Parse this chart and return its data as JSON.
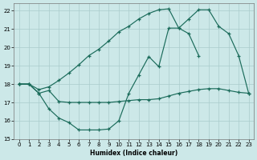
{
  "xlabel": "Humidex (Indice chaleur)",
  "bg_color": "#cce8e8",
  "grid_color": "#aacccc",
  "line_color": "#1a6b5a",
  "xlim": [
    -0.5,
    23.5
  ],
  "ylim": [
    15,
    22.4
  ],
  "xticks": [
    0,
    1,
    2,
    3,
    4,
    5,
    6,
    7,
    8,
    9,
    10,
    11,
    12,
    13,
    14,
    15,
    16,
    17,
    18,
    19,
    20,
    21,
    22,
    23
  ],
  "yticks": [
    15,
    16,
    17,
    18,
    19,
    20,
    21,
    22
  ],
  "line1_x": [
    0,
    1,
    2,
    3,
    4,
    5,
    6,
    7,
    8,
    9,
    10,
    11,
    12,
    13,
    14,
    15,
    16,
    17,
    18,
    19,
    20,
    21,
    22,
    23
  ],
  "line1_y": [
    18.0,
    18.0,
    17.7,
    17.85,
    18.2,
    18.6,
    19.05,
    19.55,
    19.9,
    20.35,
    20.85,
    21.15,
    21.55,
    21.85,
    22.05,
    22.1,
    21.05,
    20.75,
    19.55,
    null,
    null,
    null,
    null,
    null
  ],
  "line2_x": [
    0,
    1,
    2,
    3,
    4,
    5,
    6,
    7,
    8,
    9,
    10,
    11,
    12,
    13,
    14,
    15,
    16,
    17,
    18,
    19,
    20,
    21,
    22,
    23
  ],
  "line2_y": [
    18.0,
    18.0,
    17.5,
    17.65,
    17.05,
    17.0,
    17.0,
    17.0,
    17.0,
    17.0,
    17.05,
    17.1,
    17.15,
    17.15,
    17.2,
    17.35,
    17.5,
    17.6,
    17.7,
    17.75,
    17.75,
    17.65,
    17.55,
    17.5
  ],
  "line3_x": [
    0,
    1,
    2,
    3,
    4,
    5,
    6,
    7,
    8,
    9,
    10,
    11,
    12,
    13,
    14,
    15,
    16,
    17,
    18,
    19,
    20,
    21,
    22,
    23
  ],
  "line3_y": [
    18.0,
    18.0,
    17.5,
    16.65,
    16.15,
    15.9,
    15.5,
    15.5,
    15.5,
    15.55,
    16.0,
    17.5,
    18.5,
    19.5,
    18.95,
    21.05,
    21.05,
    21.55,
    22.05,
    22.05,
    21.15,
    20.75,
    19.55,
    17.5
  ]
}
